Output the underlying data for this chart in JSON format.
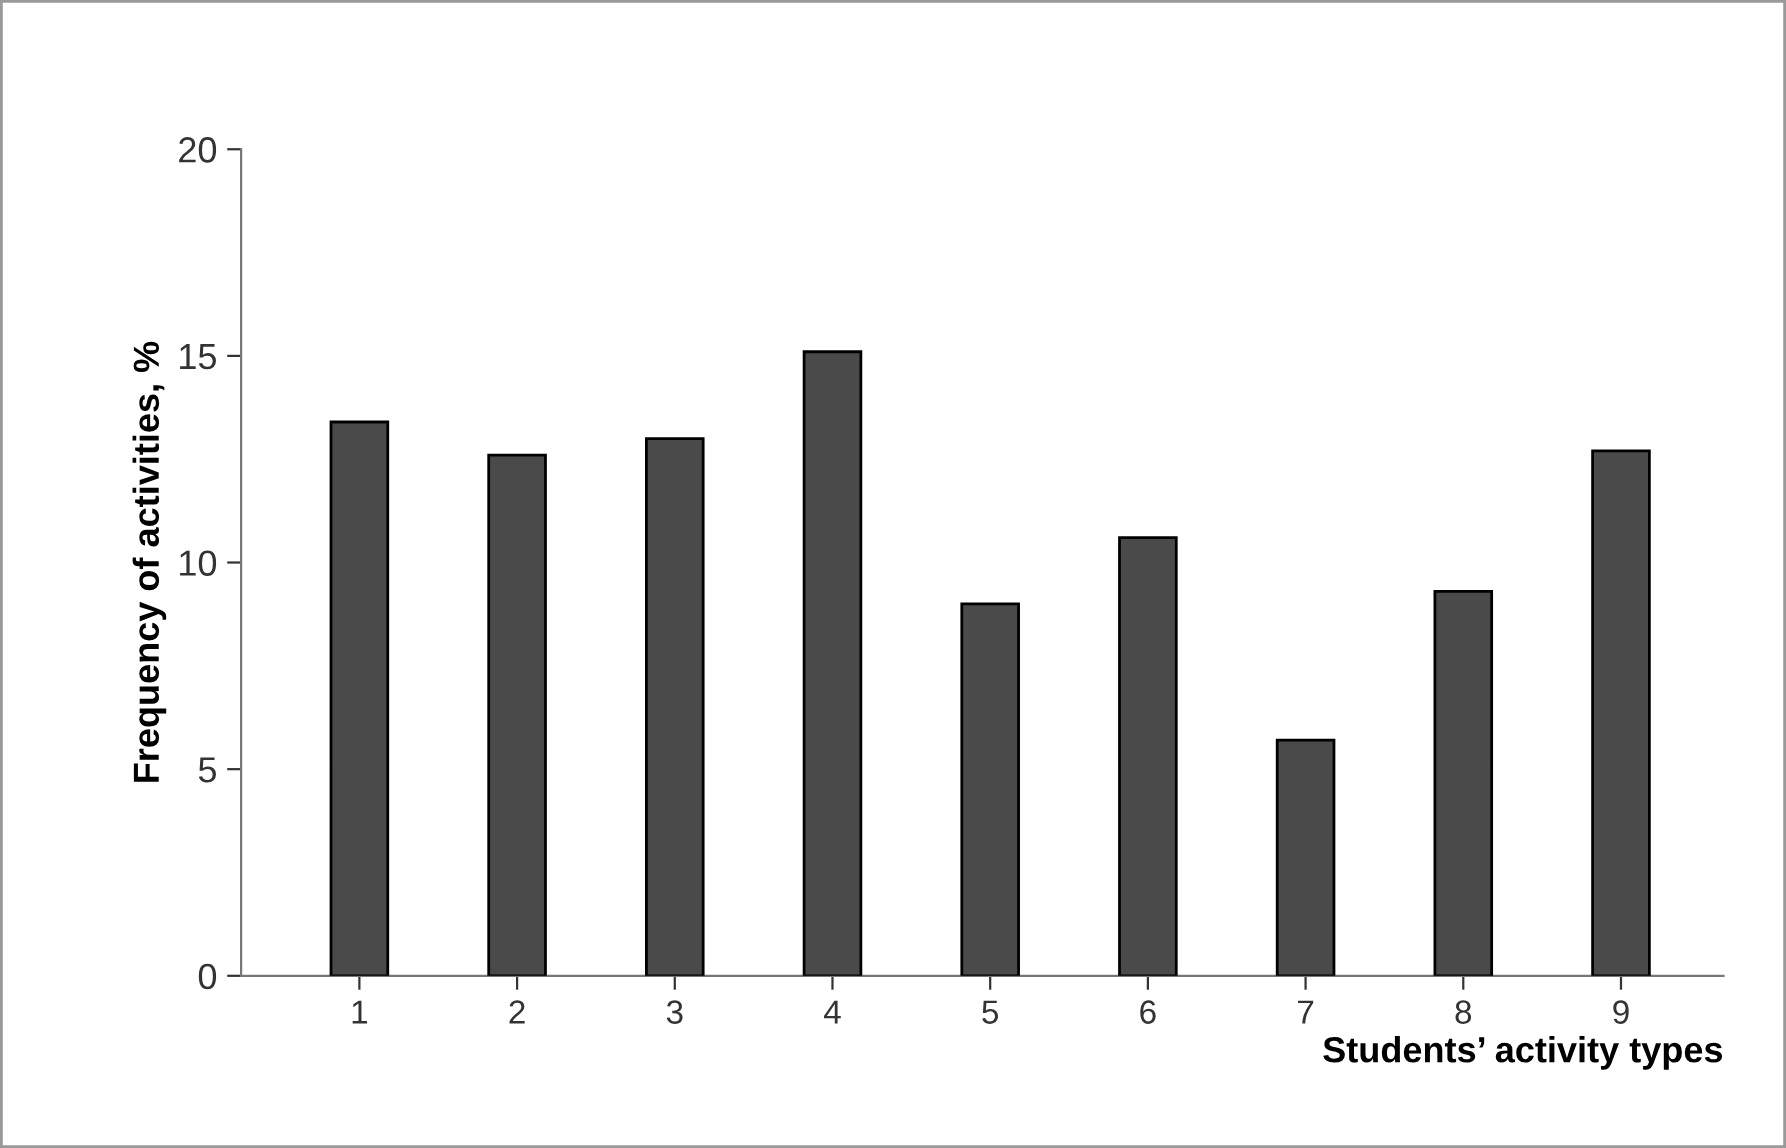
{
  "chart_data": {
    "type": "bar",
    "xlabel": "Students’ activity types",
    "ylabel": "Frequency of activities, %",
    "categories": [
      "1",
      "2",
      "3",
      "4",
      "5",
      "6",
      "7",
      "8",
      "9"
    ],
    "values": [
      13.4,
      12.6,
      13.0,
      15.1,
      9.0,
      10.6,
      5.7,
      9.3,
      12.7
    ],
    "color": "#4a4a4a",
    "ylim": [
      0,
      20
    ],
    "yticks": [
      0,
      5,
      10,
      15,
      20
    ],
    "grid": false
  }
}
